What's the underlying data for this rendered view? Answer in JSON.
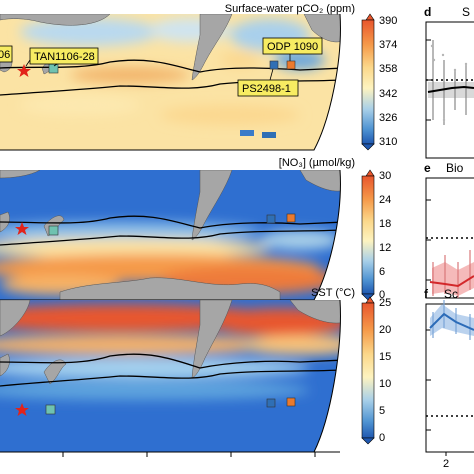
{
  "chart_data": [
    {
      "type": "heatmap",
      "title": "Surface-water pCO₂ (ppm)",
      "colorbar_ticks": [
        "390",
        "374",
        "358",
        "342",
        "326",
        "310"
      ],
      "colorbar_range": [
        310,
        390
      ],
      "site_labels": [
        "TAN1106-28",
        "ODP 1090",
        "PS2498-1"
      ],
      "partial_label": "06"
    },
    {
      "type": "heatmap",
      "title": "[NO₃] (µmol/kg)",
      "colorbar_ticks": [
        "30",
        "24",
        "18",
        "12",
        "6",
        "0"
      ],
      "colorbar_range": [
        0,
        30
      ]
    },
    {
      "type": "heatmap",
      "title": "SST (°C)",
      "colorbar_ticks": [
        "25",
        "20",
        "15",
        "10",
        "5",
        "0"
      ],
      "colorbar_range": [
        0,
        25
      ]
    }
  ],
  "side_panels": [
    {
      "letter": "d",
      "partial_title": "S"
    },
    {
      "letter": "e",
      "partial_title": "Bio"
    },
    {
      "letter": "f",
      "partial_title": "Sc",
      "xtick": "2"
    }
  ],
  "colors": {
    "land": "#a6a6a6",
    "site_teal": "#6fc2b0",
    "site_blue": "#2f6fb5",
    "site_orange": "#ea7a2e",
    "star": "#e2231a",
    "label_box": "#f7ec62"
  }
}
